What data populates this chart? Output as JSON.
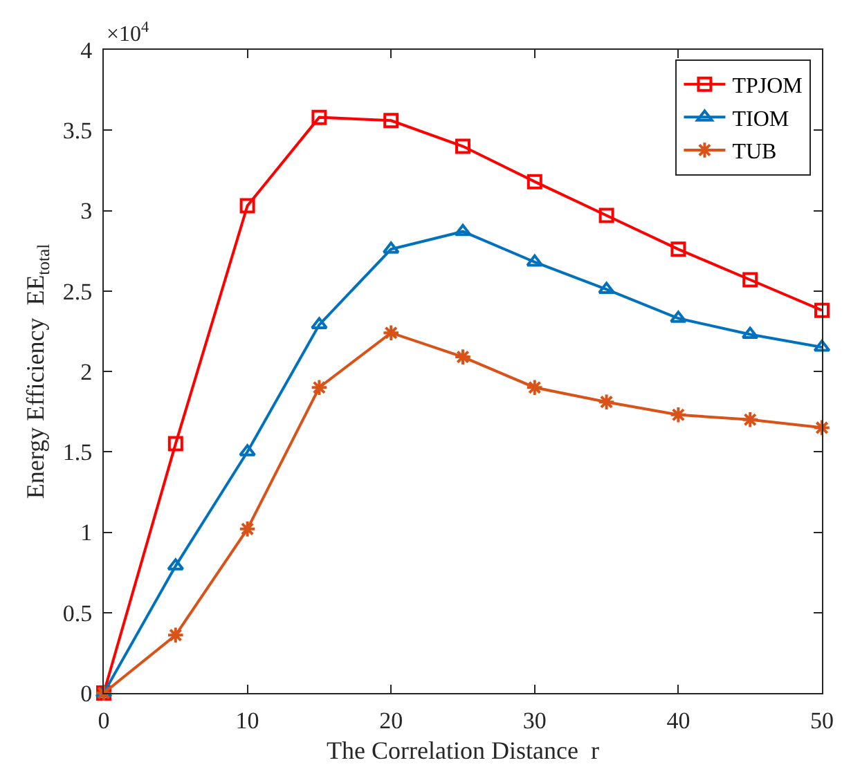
{
  "chart_data": {
    "type": "line",
    "xlabel": "The Correlation Distance  r",
    "ylabel": "Energy Efficiency  EE$_{total}$",
    "annotations": [
      "×10$^{4}$"
    ],
    "x": [
      0,
      5,
      10,
      15,
      20,
      25,
      30,
      35,
      40,
      45,
      50
    ],
    "series": [
      {
        "name": "TPJOM",
        "color": "#ff0000",
        "marker": "square",
        "values": [
          0,
          1.55,
          3.03,
          3.58,
          3.56,
          3.4,
          3.18,
          2.97,
          2.76,
          2.57,
          2.38
        ]
      },
      {
        "name": "TIOM",
        "color": "#0072bd",
        "marker": "triangle",
        "values": [
          0,
          0.79,
          1.5,
          2.29,
          2.76,
          2.87,
          2.68,
          2.51,
          2.33,
          2.23,
          2.15
        ]
      },
      {
        "name": "TUB",
        "color": "#d95319",
        "marker": "cross",
        "values": [
          0,
          0.36,
          1.02,
          1.9,
          2.24,
          2.09,
          1.9,
          1.81,
          1.73,
          1.7,
          1.65
        ]
      }
    ],
    "xlim": [
      0,
      50
    ],
    "xticks": [
      0,
      10,
      20,
      30,
      40,
      50
    ],
    "ylim": [
      0,
      4
    ],
    "yticks": [
      0,
      0.5,
      1,
      1.5,
      2,
      2.5,
      3,
      3.5,
      4
    ],
    "legend": "top right",
    "line_style": "solid"
  }
}
